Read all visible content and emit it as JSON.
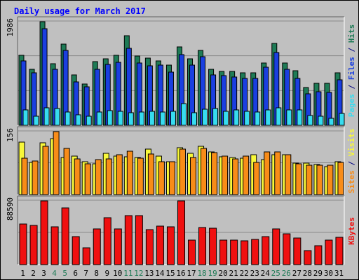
{
  "title": "Daily usage for March 2017",
  "colors": {
    "hits": "#1e7b56",
    "files": "#1a3fe0",
    "pages": "#37dcef",
    "visits": "#f8f83a",
    "sites": "#f88c18",
    "kbytes": "#f01010",
    "weekend_day": "#1e7b56",
    "weekday_day": "#000000"
  },
  "chart_data": [
    {
      "type": "bar",
      "panel": "hits-files-pages",
      "ylabel_parts": [
        {
          "text": "Pages",
          "color": "#37dcef"
        },
        {
          "text": " / ",
          "color": "#000080"
        },
        {
          "text": "Files",
          "color": "#1a3fe0"
        },
        {
          "text": " / ",
          "color": "#000080"
        },
        {
          "text": "Hits",
          "color": "#1e7b56"
        }
      ],
      "max_label": "1986",
      "ylim": [
        0,
        1986
      ],
      "categories": [
        "1",
        "2",
        "3",
        "4",
        "5",
        "6",
        "7",
        "8",
        "9",
        "10",
        "11",
        "12",
        "13",
        "14",
        "15",
        "16",
        "17",
        "18",
        "19",
        "20",
        "21",
        "22",
        "23",
        "24",
        "25",
        "26",
        "27",
        "28",
        "29",
        "30",
        "31"
      ],
      "series": [
        {
          "name": "Hits",
          "values": [
            1340,
            1080,
            1986,
            1180,
            1550,
            960,
            790,
            1220,
            1280,
            1340,
            1720,
            1330,
            1290,
            1230,
            1150,
            1500,
            1280,
            1430,
            1080,
            1030,
            1030,
            1010,
            1010,
            1200,
            1570,
            1190,
            1040,
            720,
            810,
            800,
            1000
          ]
        },
        {
          "name": "Files",
          "values": [
            1240,
            1000,
            1850,
            1070,
            1430,
            830,
            740,
            1080,
            1170,
            1210,
            1470,
            1190,
            1140,
            1150,
            1020,
            1350,
            1160,
            1310,
            970,
            950,
            930,
            900,
            900,
            1110,
            1400,
            1070,
            900,
            610,
            640,
            630,
            870
          ]
        },
        {
          "name": "Pages",
          "values": [
            300,
            170,
            340,
            320,
            250,
            200,
            180,
            260,
            280,
            270,
            240,
            250,
            270,
            260,
            270,
            410,
            240,
            310,
            320,
            270,
            300,
            270,
            260,
            290,
            330,
            300,
            300,
            190,
            180,
            130,
            230
          ]
        }
      ]
    },
    {
      "type": "bar",
      "panel": "visits-sites",
      "ylabel_parts": [
        {
          "text": "Sites",
          "color": "#f88c18"
        },
        {
          "text": " / ",
          "color": "#000080"
        },
        {
          "text": "Visits",
          "color": "#f8f83a"
        }
      ],
      "max_label": "156",
      "ylim": [
        0,
        156
      ],
      "categories": [
        "1",
        "2",
        "3",
        "4",
        "5",
        "6",
        "7",
        "8",
        "9",
        "10",
        "11",
        "12",
        "13",
        "14",
        "15",
        "16",
        "17",
        "18",
        "19",
        "20",
        "21",
        "22",
        "23",
        "24",
        "25",
        "26",
        "27",
        "28",
        "29",
        "30",
        "31"
      ],
      "series": [
        {
          "name": "Visits",
          "values": [
            130,
            80,
            128,
            138,
            92,
            96,
            82,
            76,
            102,
            96,
            94,
            92,
            112,
            96,
            82,
            116,
            102,
            120,
            106,
            94,
            92,
            90,
            98,
            86,
            98,
            98,
            78,
            78,
            74,
            70,
            82
          ]
        },
        {
          "name": "Sites",
          "values": [
            90,
            84,
            120,
            156,
            114,
            88,
            76,
            86,
            88,
            98,
            108,
            90,
            100,
            82,
            82,
            112,
            92,
            114,
            104,
            96,
            88,
            96,
            80,
            106,
            106,
            98,
            76,
            72,
            72,
            72,
            80
          ]
        }
      ]
    },
    {
      "type": "bar",
      "panel": "kbytes",
      "ylabel_parts": [
        {
          "text": "KBytes",
          "color": "#f01010"
        }
      ],
      "max_label": "88590",
      "ylim": [
        0,
        88590
      ],
      "categories": [
        "1",
        "2",
        "3",
        "4",
        "5",
        "6",
        "7",
        "8",
        "9",
        "10",
        "11",
        "12",
        "13",
        "14",
        "15",
        "16",
        "17",
        "18",
        "19",
        "20",
        "21",
        "22",
        "23",
        "24",
        "25",
        "26",
        "27",
        "28",
        "29",
        "30",
        "31"
      ],
      "series": [
        {
          "name": "KBytes",
          "values": [
            56600,
            55000,
            88590,
            52200,
            79000,
            38900,
            23100,
            49800,
            65400,
            49200,
            68400,
            68400,
            49100,
            53800,
            53000,
            88590,
            34000,
            51500,
            50800,
            34100,
            34100,
            33500,
            34900,
            38900,
            49800,
            42400,
            36900,
            19400,
            26300,
            34400,
            37900
          ]
        }
      ]
    }
  ],
  "weekend_days": [
    "4",
    "5",
    "11",
    "12",
    "18",
    "19",
    "25",
    "26"
  ]
}
